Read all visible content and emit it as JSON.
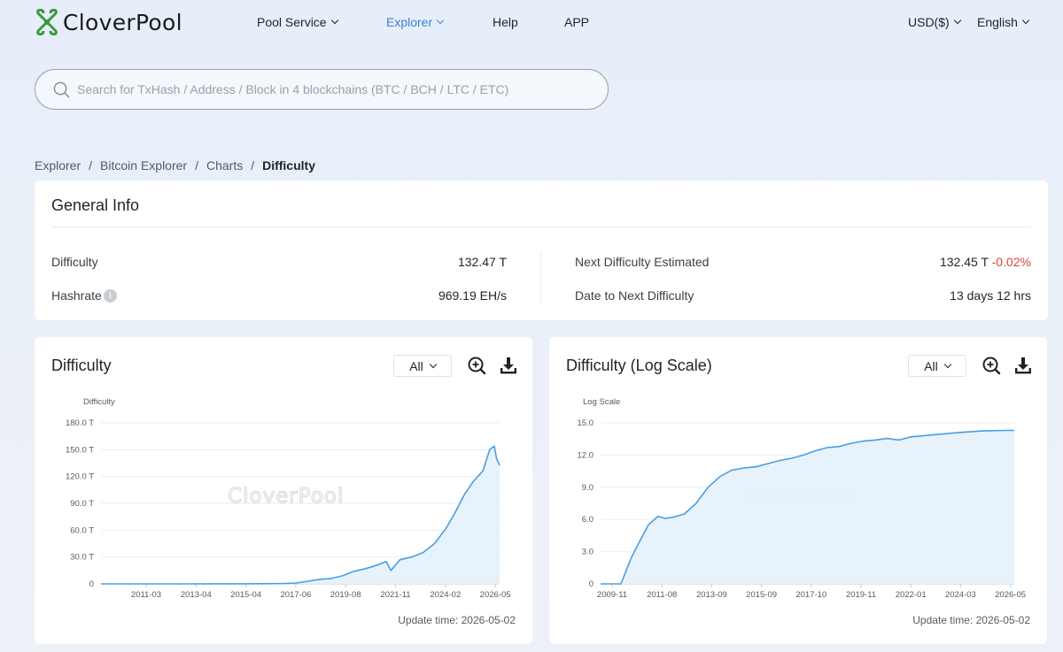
{
  "brand": {
    "name": "CloverPool"
  },
  "nav": {
    "items": [
      {
        "label": "Pool Service",
        "dropdown": true
      },
      {
        "label": "Explorer",
        "dropdown": true,
        "active": true
      },
      {
        "label": "Help",
        "dropdown": false
      },
      {
        "label": "APP",
        "dropdown": false
      }
    ],
    "currency": "USD($)",
    "language": "English"
  },
  "search": {
    "placeholder": "Search for TxHash / Address / Block in 4 blockchains (BTC / BCH / LTC / ETC)",
    "value": ""
  },
  "breadcrumb": {
    "items": [
      "Explorer",
      "Bitcoin Explorer",
      "Charts"
    ],
    "separator": "/",
    "current": "Difficulty"
  },
  "general_info": {
    "title": "General Info",
    "difficulty_label": "Difficulty",
    "difficulty_value": "132.47 T",
    "hashrate_label": "Hashrate",
    "hashrate_value": "969.19 EH/s",
    "next_difficulty_label": "Next Difficulty Estimated",
    "next_difficulty_value": "132.45 T",
    "next_difficulty_change": "-0.02%",
    "date_to_next_label": "Date to Next Difficulty",
    "date_to_next_value": "13 days 12 hrs"
  },
  "colors": {
    "accent": "#3f7fd8",
    "line": "#4a9ee0",
    "area": "#e4f1fb",
    "negative": "#e0413a"
  },
  "icons": {
    "search": "search-icon",
    "zoom": "zoom-in-icon",
    "download": "download-icon",
    "info": "info-icon"
  },
  "watermark": "CloverPool",
  "charts": [
    {
      "title": "Difficulty",
      "range_select": "All",
      "update_time": "Update time: 2026-05-02"
    },
    {
      "title": "Difficulty (Log Scale)",
      "range_select": "All",
      "update_time": "Update time: 2026-05-02"
    }
  ],
  "chart_data": [
    {
      "type": "area",
      "ylabel": "Difficulty",
      "ylim": [
        0,
        180
      ],
      "y_ticks": [
        "0",
        "30.0 T",
        "60.0 T",
        "90.0 T",
        "120.0 T",
        "150.0 T",
        "180.0 T"
      ],
      "x_ticks": [
        "2011-03",
        "2013-04",
        "2015-04",
        "2017-06",
        "2019-08",
        "2021-11",
        "2024-02",
        "2026-05"
      ],
      "grid": true,
      "legend": "none",
      "series": [
        {
          "x": [
            2009.0,
            2010.0,
            2011.0,
            2012.0,
            2013.0,
            2014.0,
            2015.0,
            2016.0,
            2016.5,
            2017.0,
            2017.5,
            2018.0,
            2018.5,
            2019.0,
            2019.5,
            2020.0,
            2020.5,
            2021.0,
            2021.4,
            2021.6,
            2022.0,
            2022.5,
            2023.0,
            2023.5,
            2024.0,
            2024.4,
            2024.8,
            2025.2,
            2025.6,
            2025.9,
            2026.1,
            2026.2,
            2026.33
          ],
          "y": [
            0,
            0,
            0,
            0,
            0,
            0.1,
            0.1,
            0.2,
            0.3,
            0.5,
            1,
            3,
            5,
            6,
            9,
            14,
            17,
            21,
            25,
            15,
            27,
            30,
            35,
            45,
            62,
            80,
            100,
            115,
            126,
            150,
            154,
            140,
            132.5
          ]
        }
      ]
    },
    {
      "type": "area",
      "ylabel": "Log Scale",
      "ylim": [
        0,
        15
      ],
      "y_ticks": [
        "0",
        "3.0",
        "6.0",
        "9.0",
        "12.0",
        "15.0"
      ],
      "x_ticks": [
        "2009-11",
        "2011-08",
        "2013-09",
        "2015-09",
        "2017-10",
        "2019-11",
        "2022-01",
        "2024-03",
        "2026-05"
      ],
      "grid": true,
      "legend": "none",
      "series": [
        {
          "x": [
            2009.0,
            2009.5,
            2009.85,
            2010.3,
            2010.6,
            2011.0,
            2011.4,
            2011.7,
            2012.0,
            2012.5,
            2013.0,
            2013.5,
            2014.0,
            2014.5,
            2015.0,
            2015.5,
            2016.0,
            2016.5,
            2017.0,
            2017.5,
            2018.0,
            2018.5,
            2019.0,
            2019.5,
            2020.0,
            2020.5,
            2021.0,
            2021.5,
            2022.0,
            2023.0,
            2024.0,
            2025.0,
            2026.0,
            2026.33
          ],
          "y": [
            0,
            0,
            0,
            2.5,
            3.8,
            5.5,
            6.3,
            6.1,
            6.2,
            6.5,
            7.5,
            9.0,
            10.0,
            10.6,
            10.8,
            10.9,
            11.2,
            11.5,
            11.7,
            12.0,
            12.4,
            12.7,
            12.8,
            13.1,
            13.3,
            13.4,
            13.55,
            13.4,
            13.7,
            13.9,
            14.1,
            14.25,
            14.3,
            14.3
          ]
        }
      ]
    }
  ]
}
